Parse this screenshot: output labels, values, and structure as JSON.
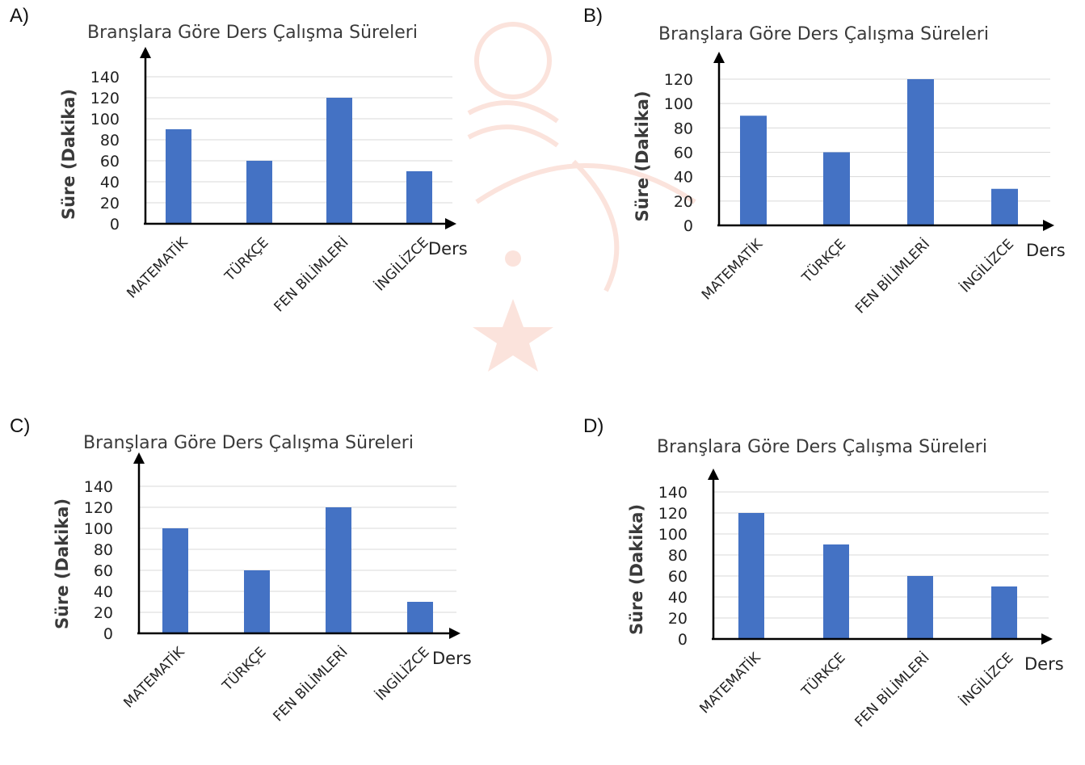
{
  "colors": {
    "bar": "#4472c4",
    "grid": "#d9d9d9",
    "axis": "#000000"
  },
  "panels": [
    {
      "label": "A)"
    },
    {
      "label": "B)"
    },
    {
      "label": "C)"
    },
    {
      "label": "D)"
    }
  ],
  "chart_data": [
    {
      "type": "bar",
      "title": "Branşlara Göre Ders Çalışma Süreleri",
      "ylabel": "Süre (Dakika)",
      "xlabel": "Ders",
      "categories": [
        "MATEMATİK",
        "TÜRKÇE",
        "FEN BİLİMLERİ",
        "İNGİLİZCE"
      ],
      "values": [
        90,
        60,
        120,
        50
      ],
      "yticks": [
        0,
        20,
        40,
        60,
        80,
        100,
        120,
        140
      ],
      "ylim": [
        0,
        140
      ],
      "grid": true
    },
    {
      "type": "bar",
      "title": "Branşlara Göre Ders Çalışma Süreleri",
      "ylabel": "Süre (Dakika)",
      "xlabel": "Ders",
      "categories": [
        "MATEMATİK",
        "TÜRKÇE",
        "FEN BİLİMLERİ",
        "İNGİLİZCE"
      ],
      "values": [
        90,
        60,
        120,
        30
      ],
      "yticks": [
        0,
        20,
        40,
        60,
        80,
        100,
        120
      ],
      "ylim": [
        0,
        120
      ],
      "grid": true
    },
    {
      "type": "bar",
      "title": "Branşlara Göre Ders Çalışma Süreleri",
      "ylabel": "Süre (Dakika)",
      "xlabel": "Ders",
      "categories": [
        "MATEMATİK",
        "TÜRKÇE",
        "FEN BİLİMLERİ",
        "İNGİLİZCE"
      ],
      "values": [
        100,
        60,
        120,
        30
      ],
      "yticks": [
        0,
        20,
        40,
        60,
        80,
        100,
        120,
        140
      ],
      "ylim": [
        0,
        140
      ],
      "grid": true
    },
    {
      "type": "bar",
      "title": "Branşlara Göre Ders Çalışma Süreleri",
      "ylabel": "Süre (Dakika)",
      "xlabel": "Ders",
      "categories": [
        "MATEMATİK",
        "TÜRKÇE",
        "FEN BİLİMLERİ",
        "İNGİLİZCE"
      ],
      "values": [
        120,
        90,
        60,
        50
      ],
      "yticks": [
        0,
        20,
        40,
        60,
        80,
        100,
        120,
        140
      ],
      "ylim": [
        0,
        140
      ],
      "grid": true
    }
  ]
}
